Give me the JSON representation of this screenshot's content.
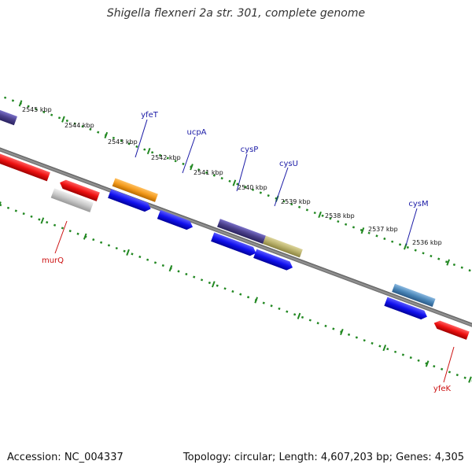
{
  "title": "Shigella flexneri 2a str. 301, complete genome",
  "footer": {
    "accession": "Accession: NC_004337",
    "summary": "Topology: circular; Length: 4,607,203 bp; Genes: 4,305"
  },
  "scale": {
    "unit": "kbp",
    "ticks": [
      {
        "kbp": 2545,
        "label": "2545 kbp"
      },
      {
        "kbp": 2544,
        "label": "2544 kbp"
      },
      {
        "kbp": 2543,
        "label": "2543 kbp"
      },
      {
        "kbp": 2542,
        "label": "2542 kbp"
      },
      {
        "kbp": 2541,
        "label": "2541 kbp"
      },
      {
        "kbp": 2540,
        "label": "2540 kbp"
      },
      {
        "kbp": 2539,
        "label": "2539 kbp"
      },
      {
        "kbp": 2538,
        "label": "2538 kbp"
      },
      {
        "kbp": 2537,
        "label": "2537 kbp"
      },
      {
        "kbp": 2536,
        "label": "2536 kbp"
      }
    ]
  },
  "colors": {
    "backbone": "#888888",
    "ruler_outer": "#228822",
    "ruler_inner": "#228822",
    "label_forward": "#1a1aa6",
    "label_reverse": "#cc1111"
  },
  "labels": {
    "yfeT": "yfeT",
    "ucpA": "ucpA",
    "cysP": "cysP",
    "cysU": "cysU",
    "cysM": "cysM",
    "murQ": "murQ",
    "yfeK": "yfeK"
  },
  "features": [
    {
      "color": "#3a34a8"
    },
    {
      "color": "#f39a1c"
    },
    {
      "color": "#4a3f8a"
    },
    {
      "color": "#b8b06a"
    },
    {
      "color": "#4a86b8"
    },
    {
      "color": "#1111ee"
    },
    {
      "color": "#ee1111"
    },
    {
      "color": "#c8c8c8"
    }
  ]
}
